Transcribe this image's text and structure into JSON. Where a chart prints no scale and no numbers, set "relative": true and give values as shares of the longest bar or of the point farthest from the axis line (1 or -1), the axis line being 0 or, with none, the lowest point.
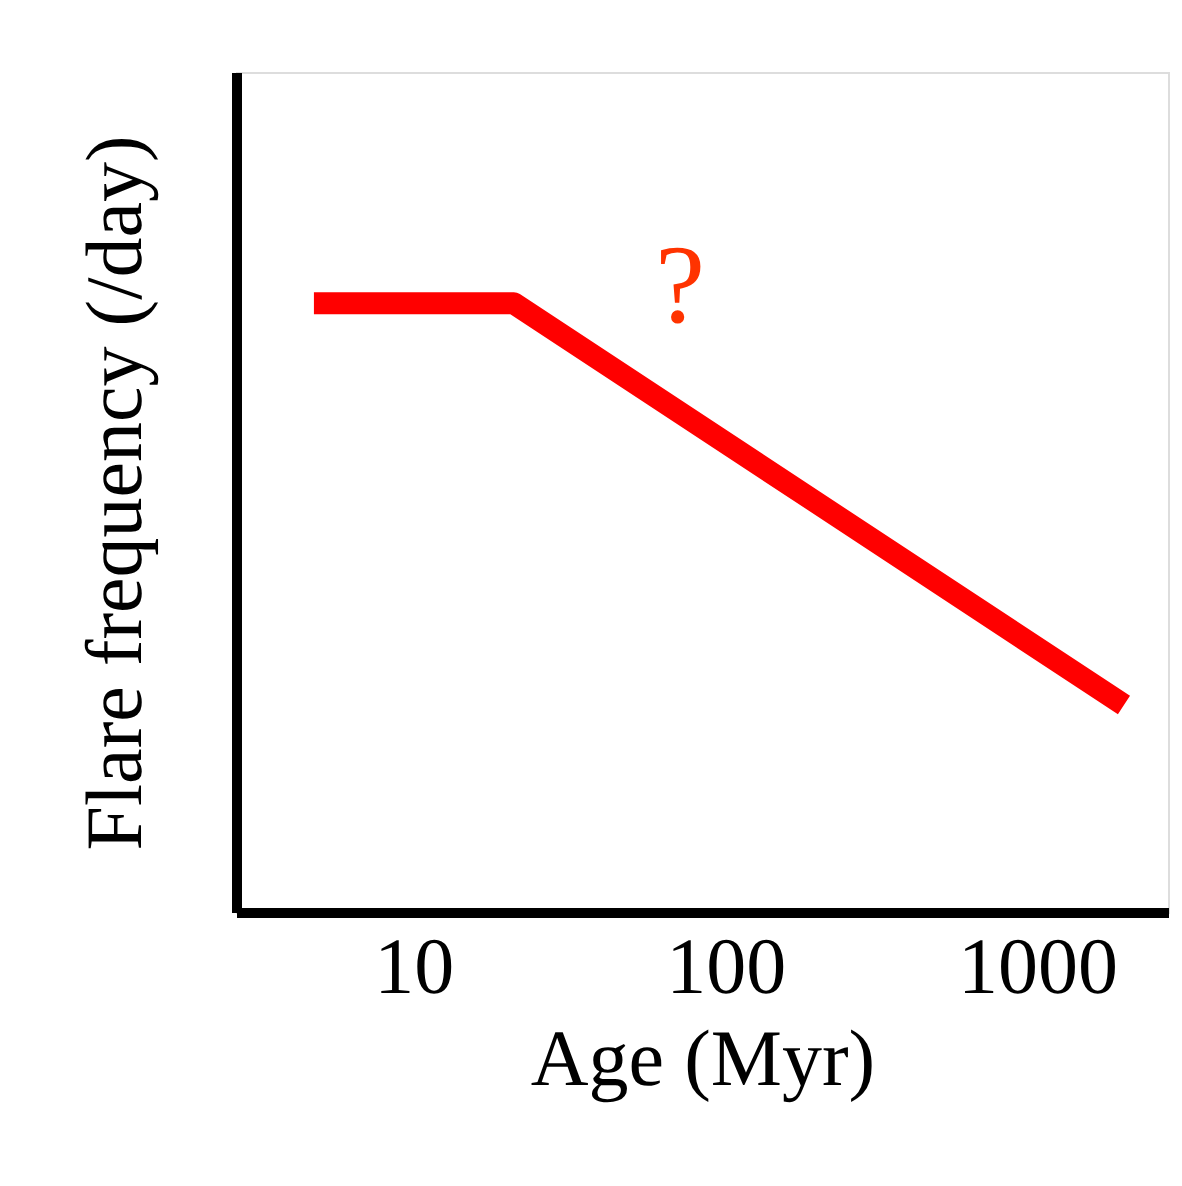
{
  "chart_data": {
    "type": "line",
    "relative": true,
    "xlabel": "Age   (Myr)",
    "ylabel": "Flare frequency   (/day)",
    "log": "x",
    "xlim": [
      2.7,
      2630
    ],
    "xticks": [
      10,
      100,
      1000
    ],
    "series": [
      {
        "color": "#ff0000",
        "x": [
          4.8,
          21,
          1900
        ],
        "values": [
          1,
          1,
          0.34
        ]
      }
    ],
    "annotations": [
      "?"
    ],
    "grid": false,
    "marker": "none",
    "line_style": "solid"
  }
}
